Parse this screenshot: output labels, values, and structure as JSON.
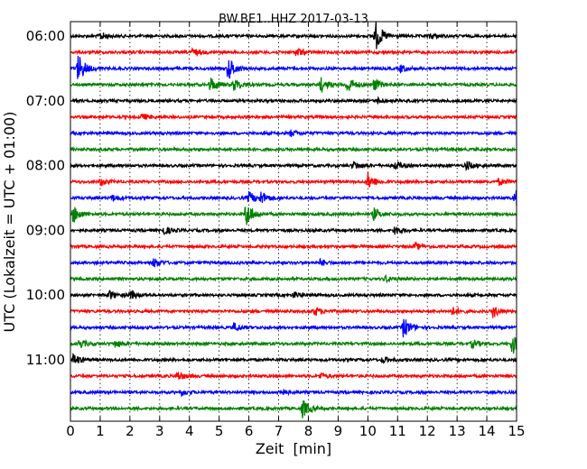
{
  "chart_data": {
    "type": "line",
    "title": "BW.BE1..HHZ 2017-03-13",
    "xlabel": "Zeit  [min]",
    "ylabel": "UTC (Lokalzeit = UTC + 01:00)",
    "xlim": [
      0,
      15
    ],
    "x_ticks": [
      "0",
      "1",
      "2",
      "3",
      "4",
      "5",
      "6",
      "7",
      "8",
      "9",
      "10",
      "11",
      "12",
      "13",
      "14",
      "15"
    ],
    "y_ticks": [
      "06:00",
      "07:00",
      "08:00",
      "09:00",
      "10:00",
      "11:00"
    ],
    "grid": {
      "x_dotted": true
    },
    "trace_colors": [
      "#000000",
      "#ff0000",
      "#0000ff",
      "#008000"
    ],
    "series": [
      {
        "start": "06:00",
        "events": [
          [
            1.0,
            0.25
          ],
          [
            10.25,
            1.0
          ],
          [
            12.1,
            0.2
          ]
        ]
      },
      {
        "start": "06:15",
        "events": [
          [
            4.1,
            0.25
          ],
          [
            7.6,
            0.3
          ],
          [
            15.0,
            0.3
          ]
        ]
      },
      {
        "start": "06:30",
        "events": [
          [
            0.25,
            1.0
          ],
          [
            5.3,
            0.8
          ],
          [
            11.1,
            0.25
          ]
        ]
      },
      {
        "start": "06:45",
        "events": [
          [
            4.7,
            0.5
          ],
          [
            5.5,
            0.4
          ],
          [
            8.4,
            0.5
          ],
          [
            9.3,
            0.6
          ],
          [
            10.2,
            0.4
          ]
        ]
      },
      {
        "start": "07:00",
        "events": [
          [
            10.3,
            0.2
          ]
        ]
      },
      {
        "start": "07:15",
        "events": [
          [
            2.4,
            0.2
          ]
        ]
      },
      {
        "start": "07:30",
        "events": [
          [
            7.4,
            0.2
          ]
        ]
      },
      {
        "start": "07:45",
        "events": []
      },
      {
        "start": "08:00",
        "events": [
          [
            9.5,
            0.3
          ],
          [
            10.9,
            0.3
          ],
          [
            13.3,
            0.3
          ]
        ]
      },
      {
        "start": "08:15",
        "events": [
          [
            1.0,
            0.25
          ],
          [
            10.0,
            0.6
          ],
          [
            14.4,
            0.2
          ]
        ]
      },
      {
        "start": "08:30",
        "events": [
          [
            1.4,
            0.2
          ],
          [
            6.0,
            0.4
          ],
          [
            6.4,
            0.4
          ],
          [
            14.95,
            0.6
          ]
        ]
      },
      {
        "start": "08:45",
        "events": [
          [
            0.1,
            0.6
          ],
          [
            5.9,
            0.9
          ],
          [
            10.2,
            0.4
          ]
        ]
      },
      {
        "start": "09:00",
        "events": [
          [
            3.1,
            0.3
          ],
          [
            10.9,
            0.3
          ]
        ]
      },
      {
        "start": "09:15",
        "events": [
          [
            11.6,
            0.2
          ]
        ]
      },
      {
        "start": "09:30",
        "events": [
          [
            2.8,
            0.3
          ],
          [
            8.4,
            0.2
          ]
        ]
      },
      {
        "start": "09:45",
        "events": [
          [
            10.6,
            0.2
          ]
        ]
      },
      {
        "start": "10:00",
        "events": [
          [
            1.3,
            0.3
          ],
          [
            2.0,
            0.3
          ],
          [
            7.5,
            0.2
          ]
        ]
      },
      {
        "start": "10:15",
        "events": [
          [
            8.2,
            0.3
          ],
          [
            12.8,
            0.3
          ],
          [
            14.2,
            0.4
          ]
        ]
      },
      {
        "start": "10:30",
        "events": [
          [
            5.5,
            0.3
          ],
          [
            11.2,
            0.7
          ]
        ]
      },
      {
        "start": "10:45",
        "events": [
          [
            0.3,
            0.3
          ],
          [
            1.5,
            0.25
          ],
          [
            13.5,
            0.25
          ],
          [
            14.85,
            0.7
          ]
        ]
      },
      {
        "start": "11:00",
        "events": [
          [
            0.1,
            0.4
          ],
          [
            10.5,
            0.2
          ]
        ]
      },
      {
        "start": "11:15",
        "events": [
          [
            3.6,
            0.3
          ],
          [
            8.4,
            0.2
          ]
        ]
      },
      {
        "start": "11:30",
        "events": [
          [
            3.7,
            0.2
          ],
          [
            7.0,
            0.25
          ]
        ]
      },
      {
        "start": "11:45",
        "events": [
          [
            7.8,
            0.6
          ]
        ]
      }
    ]
  }
}
